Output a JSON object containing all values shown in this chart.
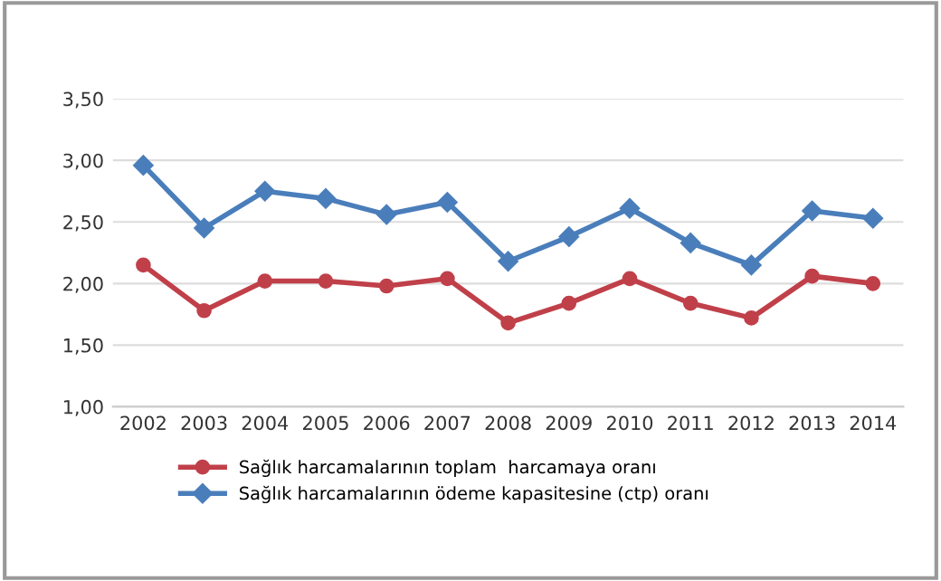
{
  "chart_data": {
    "type": "line",
    "categories": [
      "2002",
      "2003",
      "2004",
      "2005",
      "2006",
      "2007",
      "2008",
      "2009",
      "2010",
      "2011",
      "2012",
      "2013",
      "2014"
    ],
    "series": [
      {
        "name": "Sağlık harcamalarının toplam  harcamaya oranı",
        "color": "#c0404a",
        "marker": "circle",
        "values": [
          2.15,
          1.78,
          2.02,
          2.02,
          1.98,
          2.04,
          1.68,
          1.84,
          2.04,
          1.84,
          1.72,
          2.06,
          2.0
        ]
      },
      {
        "name": "Sağlık harcamalarının ödeme kapasitesine (ctp) oranı",
        "color": "#4a7ebb",
        "marker": "diamond",
        "values": [
          2.96,
          2.45,
          2.75,
          2.69,
          2.56,
          2.66,
          2.18,
          2.38,
          2.61,
          2.33,
          2.15,
          2.59,
          2.53
        ]
      }
    ],
    "ylim": [
      1.0,
      3.5
    ],
    "yticks": [
      {
        "value": 1.0,
        "label": "1,00"
      },
      {
        "value": 1.5,
        "label": "1,50"
      },
      {
        "value": 2.0,
        "label": "2,00"
      },
      {
        "value": 2.5,
        "label": "2,50"
      },
      {
        "value": 3.0,
        "label": "3,00"
      },
      {
        "value": 3.5,
        "label": "3,50"
      }
    ],
    "grid": "y",
    "legend": "bottom"
  }
}
